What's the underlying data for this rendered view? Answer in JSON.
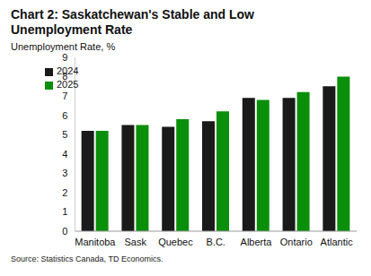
{
  "chart_data": {
    "type": "bar",
    "title": "Chart 2: Saskatchewan's Stable and Low Unemployment Rate",
    "y_label": "Unemployment Rate, %",
    "source": "Source: Statistics Canada, TD Economics.",
    "categories": [
      "Manitoba",
      "Sask",
      "Quebec",
      "B.C.",
      "Alberta",
      "Ontario",
      "Atlantic"
    ],
    "series": [
      {
        "name": "2024",
        "color": "#1a1a1a",
        "values": [
          5.2,
          5.5,
          5.4,
          5.7,
          6.9,
          6.9,
          7.5
        ]
      },
      {
        "name": "2025",
        "color": "#0a8f0a",
        "values": [
          5.2,
          5.5,
          5.8,
          6.2,
          6.8,
          7.2,
          8.0
        ]
      }
    ],
    "ylim": [
      0,
      9
    ],
    "yticks": [
      0,
      1,
      2,
      3,
      4,
      5,
      6,
      7,
      8,
      9
    ],
    "grid": false,
    "legend": "upper left"
  }
}
